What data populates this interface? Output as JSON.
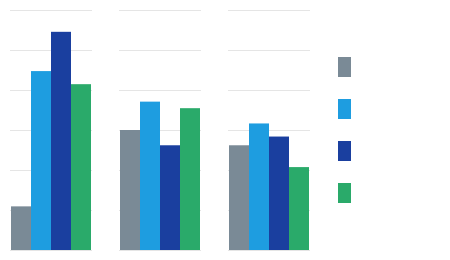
{
  "chart_data": {
    "type": "bar",
    "categories": [
      null,
      null,
      null
    ],
    "series": [
      {
        "color": "#7a8a96",
        "values": [
          2.0,
          5.5,
          4.8
        ]
      },
      {
        "color": "#1e9de0",
        "values": [
          8.2,
          6.8,
          5.8
        ]
      },
      {
        "color": "#1a3f9f",
        "values": [
          10.0,
          4.8,
          5.2
        ]
      },
      {
        "color": "#2aaa6a",
        "values": [
          7.6,
          6.5,
          3.8
        ]
      }
    ],
    "ylim": [
      0,
      11
    ],
    "yticks": [
      0,
      1.8333333333333333,
      3.6666666666666665,
      5.5,
      7.333333333333333,
      9.166666666666666,
      11
    ],
    "grid": true,
    "tick_labels": false,
    "legend": "right"
  }
}
